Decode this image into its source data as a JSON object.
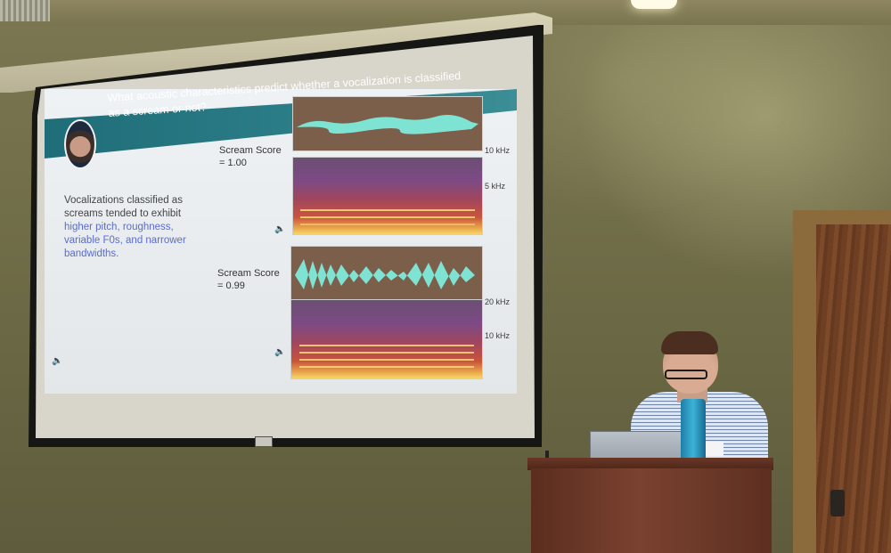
{
  "slide": {
    "title": "What acoustic characteristics predict whether a vocalization is classified as a scream or not?",
    "body_plain": "Vocalizations classified as screams tended to exhibit",
    "body_highlight": "higher pitch, roughness, variable F0s, and narrower bandwidths.",
    "examples": [
      {
        "score_label": "Scream Score",
        "score_value": "= 1.00",
        "freq_labels": [
          "10 kHz",
          "5 kHz"
        ]
      },
      {
        "score_label": "Scream Score",
        "score_value": "= 0.99",
        "freq_labels": [
          "20 kHz",
          "10 kHz"
        ]
      }
    ]
  },
  "colors": {
    "header_teal": "#2a7c86",
    "highlight_text": "#5b6bd0",
    "waveform": "#7ee3d2",
    "wall": "#6f6c48",
    "podium": "#6a3726"
  }
}
